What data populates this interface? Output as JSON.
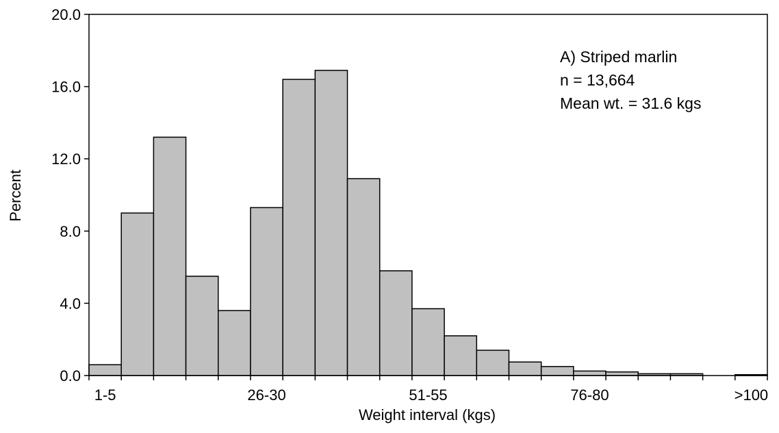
{
  "chart_data": {
    "type": "bar",
    "title": "",
    "xlabel": "Weight interval (kgs)",
    "ylabel": "Percent",
    "ylim": [
      0,
      20
    ],
    "yticks": [
      "0.0",
      "4.0",
      "8.0",
      "12.0",
      "16.0",
      "20.0"
    ],
    "xtick_labels": [
      {
        "bin": 0,
        "label": "1-5"
      },
      {
        "bin": 5,
        "label": "26-30"
      },
      {
        "bin": 10,
        "label": "51-55"
      },
      {
        "bin": 15,
        "label": "76-80"
      },
      {
        "bin": 20,
        "label": ">100"
      }
    ],
    "categories": [
      "1-5",
      "6-10",
      "11-15",
      "16-20",
      "21-25",
      "26-30",
      "31-35",
      "36-40",
      "41-45",
      "46-50",
      "51-55",
      "56-60",
      "61-65",
      "66-70",
      "71-75",
      "76-80",
      "81-85",
      "86-90",
      "91-95",
      "96-100",
      ">100"
    ],
    "values": [
      0.6,
      9.0,
      13.2,
      5.5,
      3.6,
      9.3,
      16.4,
      16.9,
      10.9,
      5.8,
      3.7,
      2.2,
      1.4,
      0.75,
      0.5,
      0.25,
      0.2,
      0.1,
      0.1,
      0.0,
      0.05
    ],
    "bar_color": "#c0c0c0",
    "edge_color": "#000000",
    "grid": false,
    "legend": "none",
    "annotation": [
      "A) Striped marlin",
      "n = 13,664",
      "Mean wt. = 31.6 kgs"
    ]
  }
}
